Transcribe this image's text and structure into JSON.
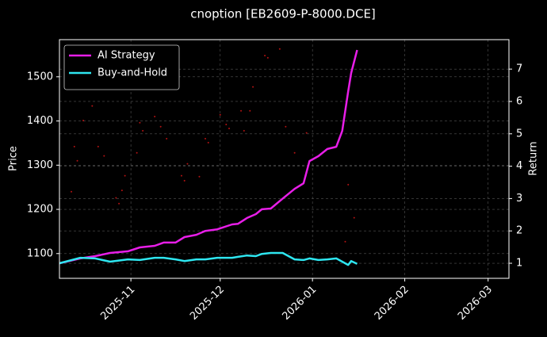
{
  "chart_data": {
    "type": "line",
    "title": "cnoption [EB2609-P-8000.DCE]",
    "ylabel": "Price",
    "y2label": "Return",
    "background": "#000000",
    "grid": true,
    "legend": "upper left",
    "xlim": [
      "2025-10-08",
      "2026-03-08"
    ],
    "xticks": [
      {
        "value": "2025-11-01",
        "label": "2025-11"
      },
      {
        "value": "2025-12-01",
        "label": "2025-12"
      },
      {
        "value": "2026-01-01",
        "label": "2026-01"
      },
      {
        "value": "2026-02-01",
        "label": "2026-02"
      },
      {
        "value": "2026-03-01",
        "label": "2026-03"
      }
    ],
    "ylim": [
      1044,
      1584
    ],
    "yticks": [
      1100,
      1200,
      1300,
      1400,
      1500
    ],
    "y2lim": [
      0.535,
      7.91
    ],
    "y2ticks": [
      1,
      2,
      3,
      4,
      5,
      6,
      7
    ],
    "x": [
      "2025-10-08",
      "2025-10-15",
      "2025-10-20",
      "2025-10-25",
      "2025-10-31",
      "2025-11-04",
      "2025-11-09",
      "2025-11-12",
      "2025-11-16",
      "2025-11-19",
      "2025-11-23",
      "2025-11-26",
      "2025-11-30",
      "2025-12-05",
      "2025-12-07",
      "2025-12-10",
      "2025-12-13",
      "2025-12-15",
      "2025-12-18",
      "2025-12-22",
      "2025-12-26",
      "2025-12-29",
      "2025-12-31",
      "2026-01-03",
      "2026-01-06",
      "2026-01-09",
      "2026-01-11",
      "2026-01-13",
      "2026-01-14",
      "2026-01-16"
    ],
    "series": [
      {
        "style": "scatter",
        "color": "#ff1a1a",
        "x": [
          "2025-10-12",
          "2025-10-13",
          "2025-10-14",
          "2025-10-16",
          "2025-10-19",
          "2025-10-21",
          "2025-10-23",
          "2025-10-27",
          "2025-10-28",
          "2025-10-29",
          "2025-10-30",
          "2025-11-03",
          "2025-11-04",
          "2025-11-05",
          "2025-11-09",
          "2025-11-11",
          "2025-11-13",
          "2025-11-18",
          "2025-11-19",
          "2025-11-20",
          "2025-11-24",
          "2025-11-26",
          "2025-11-27",
          "2025-12-01",
          "2025-12-03",
          "2025-12-04",
          "2025-12-08",
          "2025-12-09",
          "2025-12-11",
          "2025-12-12",
          "2025-12-16",
          "2025-12-17",
          "2025-12-21",
          "2025-12-23",
          "2025-12-26",
          "2025-12-30",
          "2026-01-12",
          "2026-01-13",
          "2026-01-15"
        ],
        "values": [
          1240,
          1342,
          1310,
          1401,
          1434,
          1342,
          1321,
          1226,
          1213,
          1243,
          1276,
          1328,
          1396,
          1378,
          1410,
          1387,
          1360,
          1276,
          1265,
          1303,
          1274,
          1360,
          1351,
          1414,
          1392,
          1383,
          1423,
          1378,
          1423,
          1477,
          1548,
          1543,
          1563,
          1387,
          1328,
          1373,
          1127,
          1256,
          1181
        ]
      },
      {
        "name": "AI Strategy",
        "axis": "y2",
        "color": "#e81ee8",
        "values": [
          1.0,
          1.15,
          1.22,
          1.32,
          1.37,
          1.49,
          1.54,
          1.64,
          1.64,
          1.81,
          1.88,
          2.0,
          2.05,
          2.2,
          2.22,
          2.4,
          2.52,
          2.67,
          2.69,
          3.0,
          3.3,
          3.47,
          4.16,
          4.31,
          4.53,
          4.6,
          5.09,
          6.31,
          6.88,
          7.59
        ]
      },
      {
        "name": "Buy-and-Hold",
        "axis": "y2",
        "color": "#2ee6f0",
        "values": [
          1.0,
          1.17,
          1.15,
          1.05,
          1.12,
          1.1,
          1.17,
          1.17,
          1.12,
          1.07,
          1.12,
          1.12,
          1.17,
          1.17,
          1.2,
          1.24,
          1.22,
          1.29,
          1.32,
          1.32,
          1.12,
          1.1,
          1.15,
          1.1,
          1.12,
          1.15,
          1.05,
          0.95,
          1.07,
          0.98
        ]
      }
    ]
  }
}
